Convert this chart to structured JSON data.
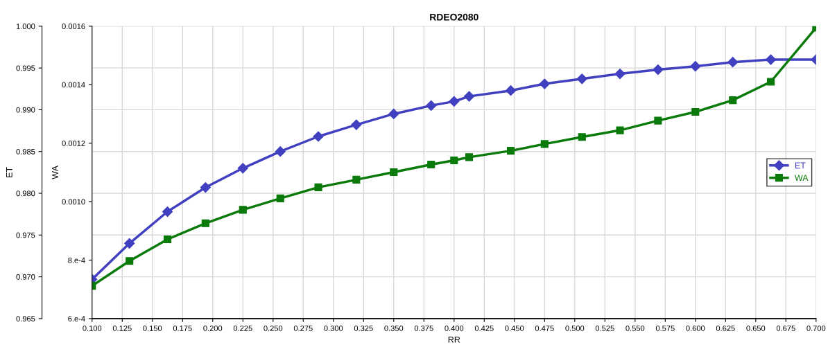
{
  "chart_data": {
    "type": "line",
    "title": "RDEO2080",
    "xlabel": "RR",
    "ylabel": "ET",
    "y2label": "WA",
    "x": [
      0.1,
      0.131,
      0.1625,
      0.194,
      0.225,
      0.256,
      0.2875,
      0.319,
      0.35,
      0.381,
      0.4,
      0.4125,
      0.447,
      0.475,
      0.506,
      0.5375,
      0.569,
      0.6,
      0.631,
      0.6625,
      0.7
    ],
    "series": [
      {
        "name": "ET",
        "color": "#4040c0",
        "marker": "diamond",
        "values": [
          0.9697,
          0.974,
          0.9778,
          0.9807,
          0.983,
          0.985,
          0.9868,
          0.9882,
          0.9895,
          0.9905,
          0.991,
          0.9916,
          0.9923,
          0.9931,
          0.9937,
          0.9943,
          0.9948,
          0.9952,
          0.9957,
          0.996,
          0.996
        ]
      },
      {
        "name": "WA",
        "color": "#0a7a0a",
        "marker": "square",
        "axis": "y2",
        "values": [
          0.000712,
          0.000797,
          0.000871,
          0.000926,
          0.000972,
          0.001011,
          0.001049,
          0.001075,
          0.001101,
          0.001127,
          0.001141,
          0.001152,
          0.001174,
          0.001197,
          0.001221,
          0.001244,
          0.001277,
          0.001307,
          0.001347,
          0.00141,
          0.001595
        ]
      }
    ],
    "xlim": [
      0.1,
      0.7
    ],
    "xticks": [
      {
        "value": 0.1,
        "label": "0.100"
      },
      0.125,
      {
        "value": 0.15,
        "label": "0.150"
      },
      0.175,
      {
        "value": 0.2,
        "label": "0.200"
      },
      0.225,
      {
        "value": 0.25,
        "label": "0.250"
      },
      0.275,
      {
        "value": 0.3,
        "label": "0.300"
      },
      0.325,
      {
        "value": 0.35,
        "label": "0.350"
      },
      0.375,
      {
        "value": 0.4,
        "label": "0.400"
      },
      0.425,
      {
        "value": 0.45,
        "label": "0.450"
      },
      0.475,
      {
        "value": 0.5,
        "label": "0.500"
      },
      0.525,
      {
        "value": 0.55,
        "label": "0.550"
      },
      0.575,
      {
        "value": 0.6,
        "label": "0.600"
      },
      0.625,
      {
        "value": 0.65,
        "label": "0.650"
      },
      0.675,
      {
        "value": 0.7,
        "label": "0.700"
      }
    ],
    "ylim": [
      0.965,
      1.0
    ],
    "yticks": [
      0.965,
      {
        "value": 0.97,
        "label": "0.970"
      },
      0.975,
      {
        "value": 0.98,
        "label": "0.980"
      },
      0.985,
      {
        "value": 0.99,
        "label": "0.990"
      },
      0.995,
      {
        "value": 1.0,
        "label": "1.000"
      }
    ],
    "y2lim": [
      0.0006,
      0.0016
    ],
    "y2ticks": [
      {
        "value": 0.0006,
        "label": "6.e-4"
      },
      {
        "value": 0.0008,
        "label": "8.e-4"
      },
      {
        "value": 0.001,
        "label": "0.0010"
      },
      0.0012,
      0.0014,
      0.0016
    ],
    "grid": true,
    "legend": "right",
    "line_style": "solid"
  }
}
